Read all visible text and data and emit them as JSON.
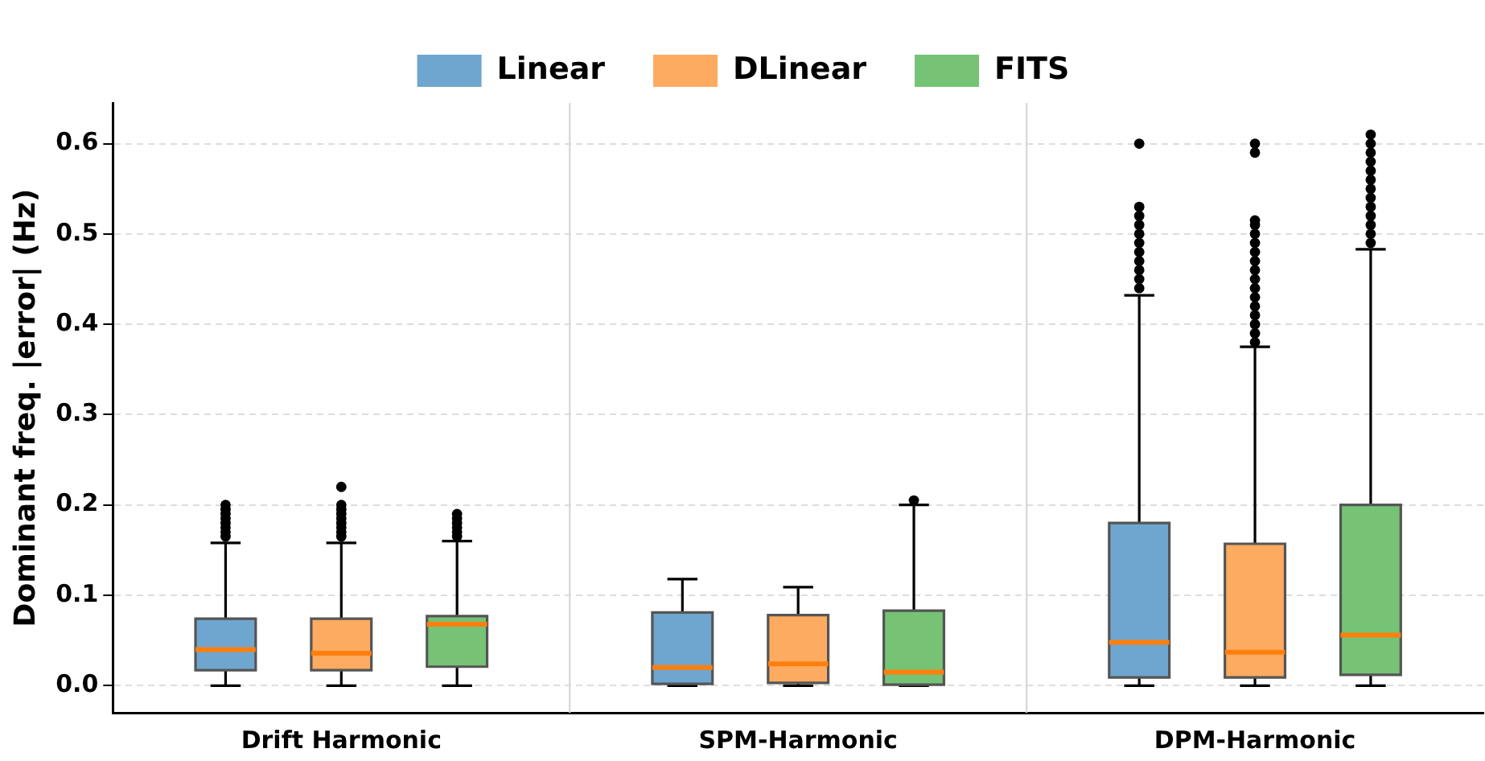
{
  "chart_data": {
    "type": "box",
    "ylabel": "Dominant freq. |error| (Hz)",
    "categories": [
      "Drift Harmonic",
      "SPM-Harmonic",
      "DPM-Harmonic"
    ],
    "ylim": [
      -0.03,
      0.645
    ],
    "yticks": [
      {
        "value": 0,
        "label": "0.0"
      },
      0.1,
      0.2,
      0.3,
      0.4,
      0.5,
      0.6
    ],
    "grid": "y",
    "legend": "top",
    "series": [
      {
        "name": "Linear",
        "color": "#6ea6cf",
        "boxes": [
          {
            "low": 0,
            "q1": 0.017,
            "median": 0.04,
            "q3": 0.074,
            "high": 0.158,
            "outliers": [
              0.165,
              0.17,
              0.175,
              0.18,
              0.185,
              0.19,
              0.195,
              0.2
            ]
          },
          {
            "low": 0,
            "q1": 0.002,
            "median": 0.02,
            "q3": 0.081,
            "high": 0.118
          },
          {
            "low": 0,
            "q1": 0.009,
            "median": 0.048,
            "q3": 0.18,
            "high": 0.432,
            "outliers": [
              0.44,
              0.45,
              0.46,
              0.47,
              0.48,
              0.49,
              0.5,
              0.51,
              0.52,
              0.53,
              0.6
            ]
          }
        ]
      },
      {
        "name": "DLinear",
        "color": "#fdab60",
        "boxes": [
          {
            "low": 0,
            "q1": 0.017,
            "median": 0.036,
            "q3": 0.074,
            "high": 0.158,
            "outliers": [
              0.165,
              0.17,
              0.175,
              0.18,
              0.185,
              0.19,
              0.195,
              0.2,
              0.22
            ]
          },
          {
            "low": 0,
            "q1": 0.003,
            "median": 0.024,
            "q3": 0.078,
            "high": 0.109
          },
          {
            "low": 0,
            "q1": 0.009,
            "median": 0.037,
            "q3": 0.157,
            "high": 0.375,
            "outliers": [
              0.38,
              0.39,
              0.4,
              0.41,
              0.42,
              0.43,
              0.44,
              0.45,
              0.46,
              0.47,
              0.48,
              0.49,
              0.5,
              0.51,
              0.515,
              0.59,
              0.6
            ]
          }
        ]
      },
      {
        "name": "FITS",
        "color": "#76c375",
        "boxes": [
          {
            "low": 0,
            "q1": 0.021,
            "median": 0.068,
            "q3": 0.077,
            "high": 0.16,
            "outliers": [
              0.165,
              0.17,
              0.175,
              0.18,
              0.185,
              0.19
            ]
          },
          {
            "low": 0,
            "q1": 0.001,
            "median": 0.015,
            "q3": 0.083,
            "high": 0.2,
            "outliers": [
              0.205
            ]
          },
          {
            "low": 0,
            "q1": 0.012,
            "median": 0.056,
            "q3": 0.2,
            "high": 0.483,
            "outliers": [
              0.49,
              0.5,
              0.51,
              0.52,
              0.53,
              0.54,
              0.55,
              0.56,
              0.57,
              0.58,
              0.59,
              0.6,
              0.61
            ]
          }
        ]
      }
    ]
  }
}
